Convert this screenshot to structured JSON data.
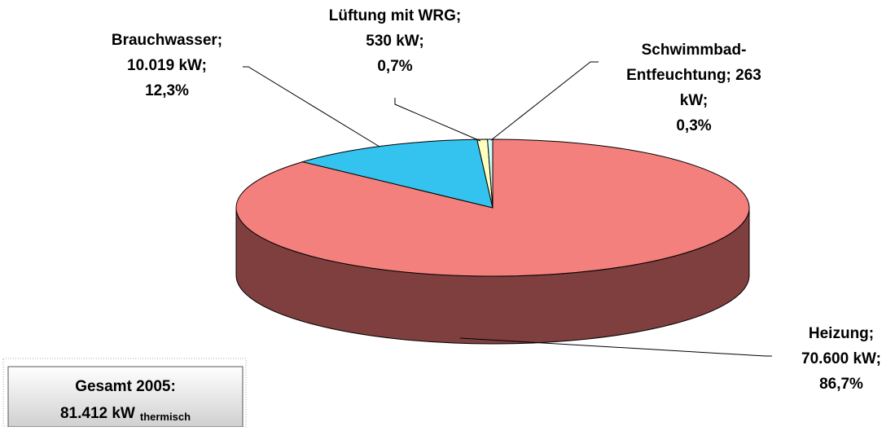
{
  "chart_data": {
    "type": "pie3d",
    "categories": [
      "Heizung",
      "Brauchwasser",
      "Lüftung mit WRG",
      "Schwimmbad-Entfeuchtung"
    ],
    "values": [
      70600,
      10019,
      530,
      263
    ],
    "percentages": [
      86.7,
      12.3,
      0.7,
      0.3
    ],
    "labels": [
      [
        "Heizung;",
        "70.600 kW;",
        "86,7%"
      ],
      [
        "Brauchwasser;",
        "10.019 kW;",
        "12,3%"
      ],
      [
        "Lüftung mit WRG;",
        "530 kW;",
        "0,7%"
      ],
      [
        "Schwimmbad-",
        "Entfeuchtung; 263",
        "kW;",
        "0,3%"
      ]
    ],
    "colors": [
      "#f4807d",
      "#33c3ee",
      "#ffffc0",
      "#ccffff"
    ],
    "side_colors": [
      "#7f3f3f",
      "#1a6a80",
      "#8c8c66",
      "#6f8c8c"
    ]
  },
  "total_box": {
    "title": "Gesamt 2005:",
    "value": "81.412 kW",
    "subscript": "thermisch"
  }
}
